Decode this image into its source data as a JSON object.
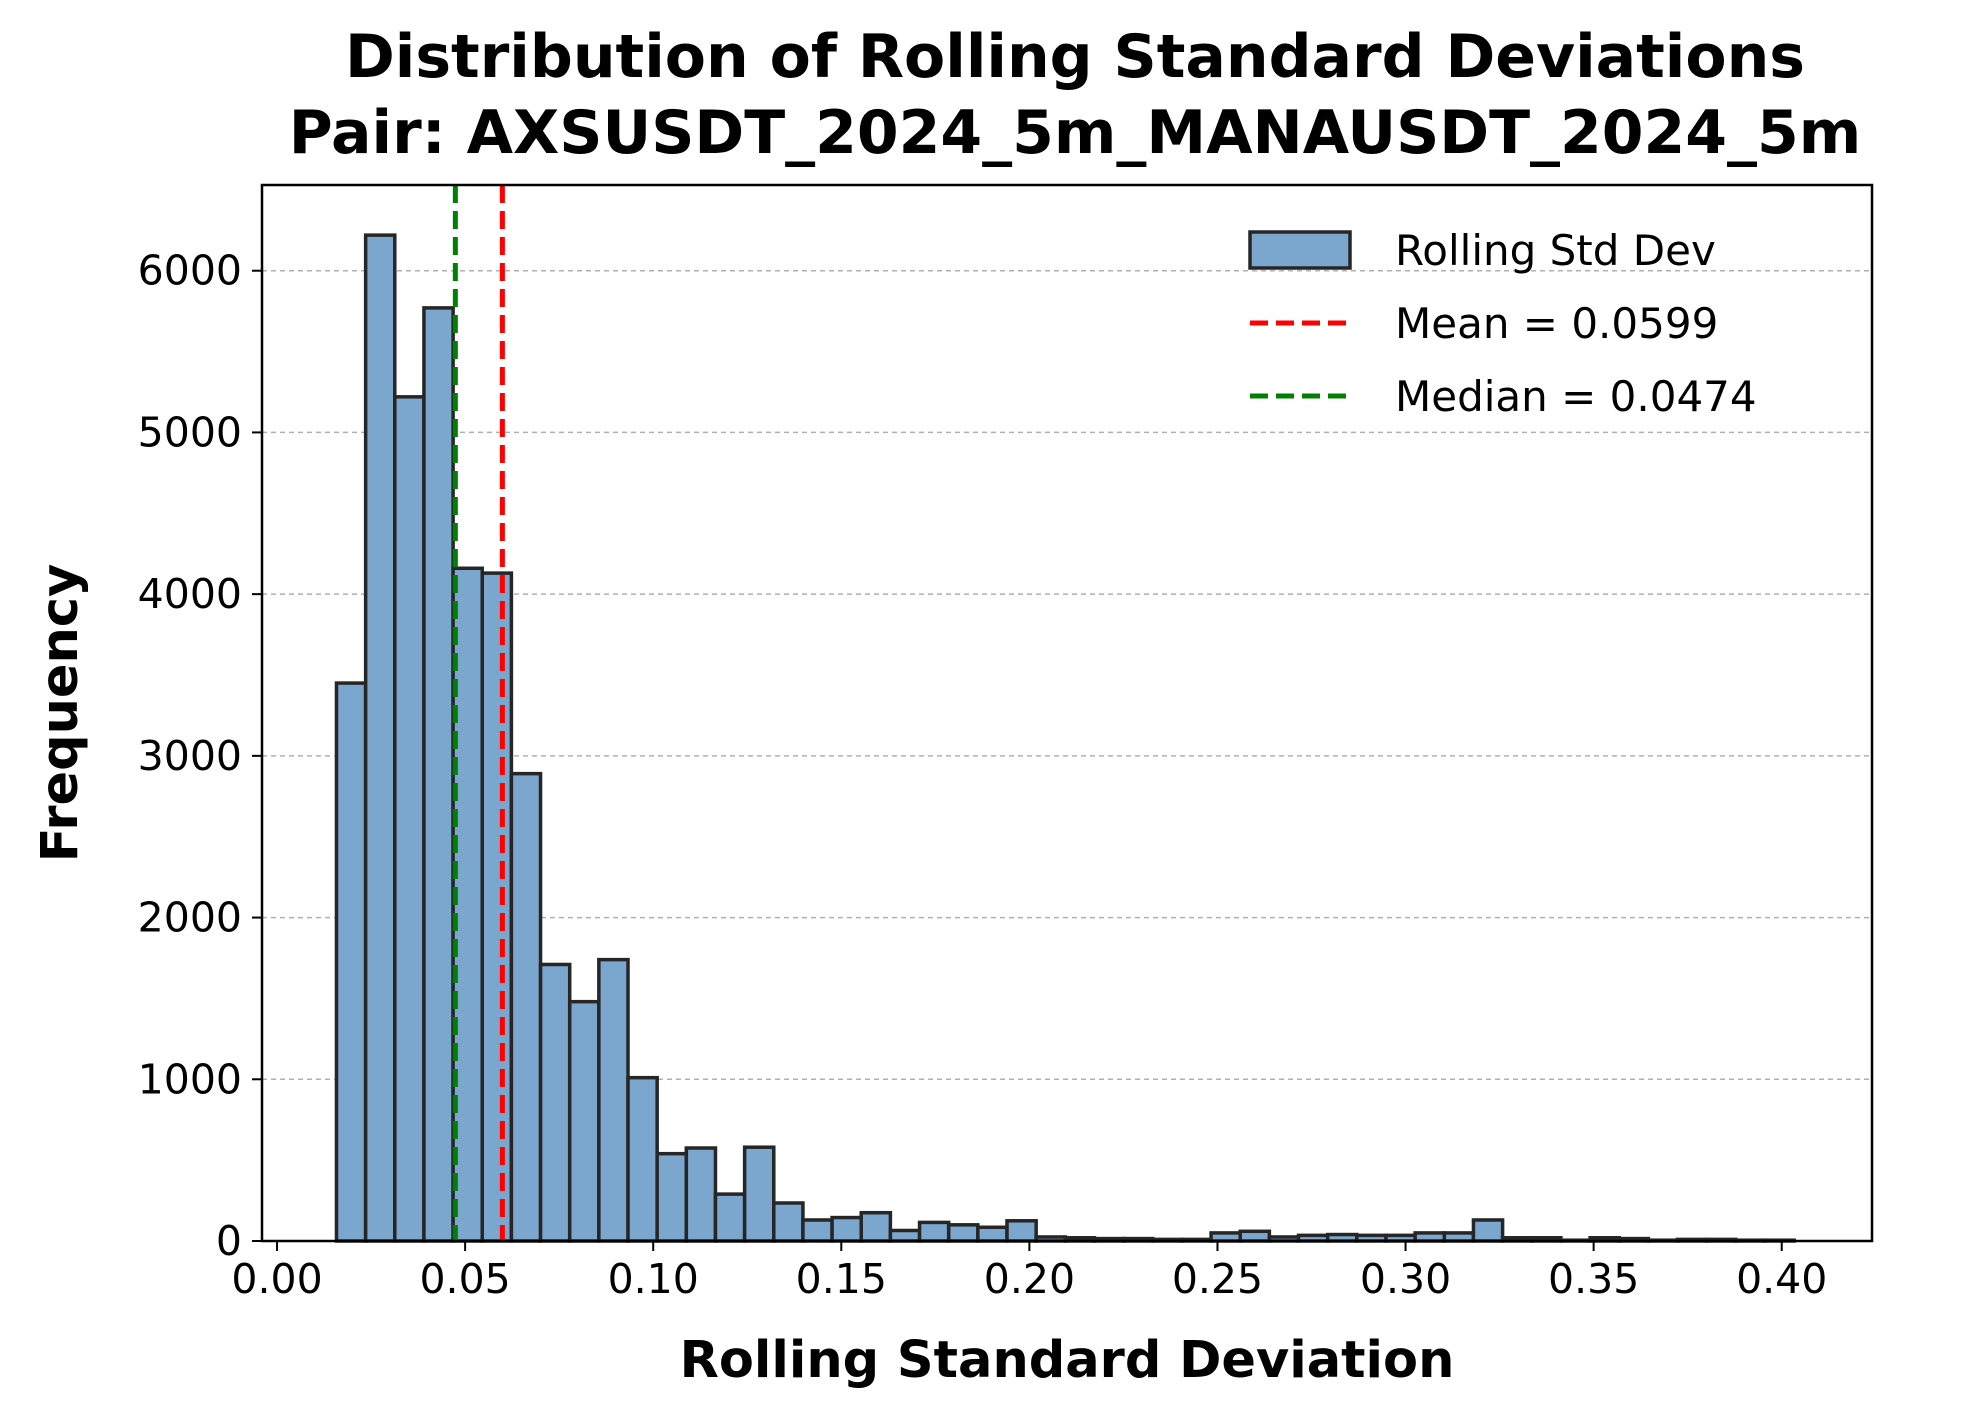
{
  "chart_data": {
    "type": "bar",
    "title_line1": "Distribution of Rolling Standard Deviations",
    "title_line2": "Pair: AXSUSDT_2024_5m_MANAUSDT_2024_5m",
    "xlabel": "Rolling Standard Deviation",
    "ylabel": "Frequency",
    "xlim": [
      -0.004,
      0.424
    ],
    "ylim": [
      0,
      6530
    ],
    "xticks": [
      0.0,
      0.05,
      0.1,
      0.15,
      0.2,
      0.25,
      0.3,
      0.35,
      0.4
    ],
    "xtick_labels": [
      "0.00",
      "0.05",
      "0.10",
      "0.15",
      "0.20",
      "0.25",
      "0.30",
      "0.35",
      "0.40"
    ],
    "yticks": [
      0,
      1000,
      2000,
      3000,
      4000,
      5000,
      6000
    ],
    "ytick_labels": [
      "0",
      "1000",
      "2000",
      "3000",
      "4000",
      "5000",
      "6000"
    ],
    "grid": "y-dashed",
    "legend_position": "top-right",
    "bin_start": 0.0158,
    "bin_width": 0.00775,
    "series": [
      {
        "name": "Rolling Std Dev",
        "values": [
          3450,
          6220,
          5220,
          5770,
          4160,
          4130,
          2890,
          1710,
          1480,
          1740,
          1010,
          540,
          575,
          290,
          580,
          235,
          130,
          145,
          175,
          65,
          115,
          100,
          85,
          125,
          25,
          20,
          15,
          15,
          10,
          10,
          50,
          60,
          25,
          35,
          40,
          35,
          35,
          50,
          50,
          130,
          20,
          20,
          5,
          20,
          15,
          5,
          10,
          10,
          5,
          5
        ]
      }
    ],
    "reference_lines": [
      {
        "name": "Mean = 0.0599",
        "value": 0.0599,
        "color": "#ff0000"
      },
      {
        "name": "Median = 0.0474",
        "value": 0.0474,
        "color": "#008000"
      }
    ],
    "colors": {
      "bar_fill": "#7ba6ce",
      "bar_edge": "#262626",
      "grid": "#b0b0b0"
    }
  }
}
